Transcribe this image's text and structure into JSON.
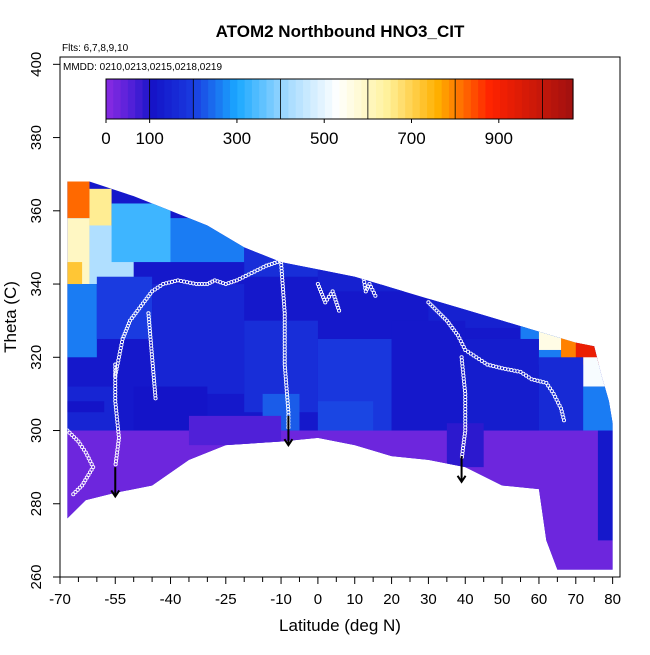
{
  "chart_data": {
    "type": "heatmap",
    "title": "ATOM2 Northbound HNO3_CIT",
    "flights_note": "Flts: 6,7,8,9,10",
    "dates_note": "MMDD: 0210,0213,0215,0218,0219",
    "xlabel": "Latitude (deg N)",
    "ylabel": "Theta (C)",
    "xlim": [
      -70,
      82
    ],
    "ylim": [
      260,
      402
    ],
    "x_ticks": [
      -70,
      -55,
      -40,
      -25,
      -10,
      0,
      10,
      20,
      30,
      40,
      50,
      60,
      70,
      80
    ],
    "x_minor_ticks": [
      -65,
      -60,
      -50,
      -45,
      -35,
      -30,
      -20,
      -15,
      -5,
      5,
      15,
      25,
      35,
      45,
      55,
      65,
      75
    ],
    "y_ticks": [
      260,
      280,
      300,
      320,
      340,
      360,
      380,
      400
    ],
    "colorbar": {
      "range": [
        0,
        1070
      ],
      "tick_values": [
        0,
        100,
        300,
        500,
        700,
        900
      ],
      "tick_labels": [
        "0",
        "100",
        "300",
        "500",
        "700",
        "900"
      ],
      "separators": [
        100,
        200,
        400,
        600,
        800,
        1000
      ],
      "stops": [
        {
          "v": 0,
          "c": "#8a2be2"
        },
        {
          "v": 60,
          "c": "#5020d8"
        },
        {
          "v": 110,
          "c": "#1414c8"
        },
        {
          "v": 200,
          "c": "#1a3be0"
        },
        {
          "v": 300,
          "c": "#1aa8ff"
        },
        {
          "v": 420,
          "c": "#a8dcff"
        },
        {
          "v": 530,
          "c": "#ffffff"
        },
        {
          "v": 640,
          "c": "#fff3a0"
        },
        {
          "v": 760,
          "c": "#ffb000"
        },
        {
          "v": 880,
          "c": "#ff2200"
        },
        {
          "v": 1070,
          "c": "#a01010"
        }
      ]
    },
    "domain": {
      "top": [
        [
          -68,
          368
        ],
        [
          -62,
          368
        ],
        [
          -50,
          364
        ],
        [
          -40,
          360
        ],
        [
          -30,
          356
        ],
        [
          -20,
          350
        ],
        [
          -10,
          346
        ],
        [
          0,
          344
        ],
        [
          10,
          342
        ],
        [
          20,
          339
        ],
        [
          30,
          336
        ],
        [
          40,
          333
        ],
        [
          50,
          330
        ],
        [
          60,
          327
        ],
        [
          70,
          324
        ],
        [
          75,
          323
        ],
        [
          77,
          315
        ],
        [
          79,
          308
        ],
        [
          80,
          302
        ]
      ],
      "bottom": [
        [
          -68,
          276
        ],
        [
          -63,
          281
        ],
        [
          -55,
          283
        ],
        [
          -45,
          285
        ],
        [
          -35,
          292
        ],
        [
          -25,
          296
        ],
        [
          -10,
          297
        ],
        [
          0,
          298
        ],
        [
          10,
          296
        ],
        [
          20,
          293
        ],
        [
          30,
          292
        ],
        [
          40,
          290
        ],
        [
          50,
          285
        ],
        [
          60,
          284
        ],
        [
          62,
          270
        ],
        [
          65,
          262
        ],
        [
          80,
          262
        ],
        [
          80,
          302
        ]
      ]
    },
    "field": [
      {
        "x": [
          -68,
          -62
        ],
        "y": [
          358,
          370
        ],
        "v": 820
      },
      {
        "x": [
          -62,
          -56
        ],
        "y": [
          355,
          366
        ],
        "v": 650
      },
      {
        "x": [
          -68,
          -62
        ],
        "y": [
          340,
          358
        ],
        "v": 600
      },
      {
        "x": [
          -68,
          -64
        ],
        "y": [
          336,
          346
        ],
        "v": 720
      },
      {
        "x": [
          -62,
          -50
        ],
        "y": [
          340,
          356
        ],
        "v": 430
      },
      {
        "x": [
          -56,
          -40
        ],
        "y": [
          346,
          362
        ],
        "v": 330
      },
      {
        "x": [
          -40,
          -20
        ],
        "y": [
          346,
          358
        ],
        "v": 260
      },
      {
        "x": [
          -20,
          0
        ],
        "y": [
          342,
          350
        ],
        "v": 170
      },
      {
        "x": [
          0,
          30
        ],
        "y": [
          338,
          344
        ],
        "v": 140
      },
      {
        "x": [
          30,
          60
        ],
        "y": [
          328,
          336
        ],
        "v": 140
      },
      {
        "x": [
          55,
          66
        ],
        "y": [
          318,
          332
        ],
        "v": 260
      },
      {
        "x": [
          60,
          70
        ],
        "y": [
          322,
          330
        ],
        "v": 560
      },
      {
        "x": [
          66,
          74
        ],
        "y": [
          318,
          326
        ],
        "v": 800
      },
      {
        "x": [
          70,
          80
        ],
        "y": [
          318,
          326
        ],
        "v": 920
      },
      {
        "x": [
          72,
          80
        ],
        "y": [
          312,
          320
        ],
        "v": 520
      },
      {
        "x": [
          -68,
          -60
        ],
        "y": [
          320,
          340
        ],
        "v": 260
      },
      {
        "x": [
          -60,
          -45
        ],
        "y": [
          325,
          342
        ],
        "v": 200
      },
      {
        "x": [
          -45,
          -20
        ],
        "y": [
          310,
          340
        ],
        "v": 150
      },
      {
        "x": [
          -50,
          -30
        ],
        "y": [
          300,
          312
        ],
        "v": 110
      },
      {
        "x": [
          -20,
          0
        ],
        "y": [
          305,
          330
        ],
        "v": 170
      },
      {
        "x": [
          0,
          20
        ],
        "y": [
          300,
          325
        ],
        "v": 190
      },
      {
        "x": [
          20,
          40
        ],
        "y": [
          300,
          330
        ],
        "v": 120
      },
      {
        "x": [
          40,
          60
        ],
        "y": [
          300,
          325
        ],
        "v": 130
      },
      {
        "x": [
          60,
          72
        ],
        "y": [
          300,
          320
        ],
        "v": 160
      },
      {
        "x": [
          72,
          80
        ],
        "y": [
          300,
          312
        ],
        "v": 260
      },
      {
        "x": [
          -15,
          -5
        ],
        "y": [
          300,
          310
        ],
        "v": 230
      },
      {
        "x": [
          0,
          15
        ],
        "y": [
          300,
          308
        ],
        "v": 210
      },
      {
        "x": [
          -68,
          -55
        ],
        "y": [
          300,
          312
        ],
        "v": 150
      },
      {
        "x": [
          -68,
          -58
        ],
        "y": [
          305,
          308
        ],
        "v": 110
      },
      {
        "x": [
          -68,
          80
        ],
        "y": [
          260,
          300
        ],
        "v": 30
      },
      {
        "x": [
          -35,
          -10
        ],
        "y": [
          296,
          304
        ],
        "v": 60
      },
      {
        "x": [
          35,
          45
        ],
        "y": [
          290,
          302
        ],
        "v": 90
      },
      {
        "x": [
          76,
          80
        ],
        "y": [
          270,
          300
        ],
        "v": 120
      }
    ],
    "sample_tracks": [
      [
        [
          -55,
          315
        ],
        [
          -53,
          325
        ],
        [
          -51,
          330
        ],
        [
          -48,
          334
        ],
        [
          -45,
          338
        ],
        [
          -42,
          340
        ],
        [
          -38,
          341
        ],
        [
          -33,
          340
        ],
        [
          -30,
          340
        ],
        [
          -28,
          341
        ],
        [
          -25,
          340
        ],
        [
          -22,
          341
        ],
        [
          -18,
          343
        ],
        [
          -14,
          345
        ],
        [
          -11,
          346
        ],
        [
          -9,
          347
        ]
      ],
      [
        [
          -55,
          318
        ],
        [
          -55,
          308
        ],
        [
          -54,
          298
        ],
        [
          -55,
          290
        ]
      ],
      [
        [
          -46,
          332
        ],
        [
          -45,
          320
        ],
        [
          -44,
          308
        ]
      ],
      [
        [
          -10,
          346
        ],
        [
          -9,
          332
        ],
        [
          -9,
          318
        ],
        [
          -8,
          305
        ],
        [
          -8,
          300
        ]
      ],
      [
        [
          0,
          340
        ],
        [
          2,
          335
        ],
        [
          4,
          338
        ],
        [
          6,
          332
        ]
      ],
      [
        [
          12,
          344
        ],
        [
          13,
          338
        ],
        [
          14,
          340
        ],
        [
          16,
          336
        ]
      ],
      [
        [
          22,
          344
        ],
        [
          24,
          340
        ],
        [
          26,
          344
        ],
        [
          28,
          343
        ]
      ],
      [
        [
          30,
          335
        ],
        [
          35,
          330
        ],
        [
          38,
          326
        ],
        [
          40,
          322
        ],
        [
          43,
          320
        ],
        [
          46,
          318
        ],
        [
          50,
          317
        ],
        [
          55,
          316
        ],
        [
          58,
          314
        ],
        [
          62,
          313
        ]
      ],
      [
        [
          39,
          320
        ],
        [
          40,
          310
        ],
        [
          40,
          300
        ],
        [
          39,
          292
        ]
      ],
      [
        [
          62,
          313
        ],
        [
          64,
          310
        ],
        [
          66,
          306
        ],
        [
          67,
          302
        ]
      ],
      [
        [
          -68,
          300
        ],
        [
          -65,
          297
        ],
        [
          -63,
          294
        ],
        [
          -61,
          290
        ],
        [
          -64,
          285
        ],
        [
          -67,
          282
        ]
      ]
    ],
    "down_arrows": [
      {
        "x": -55,
        "y_from": 290,
        "y_to": 282
      },
      {
        "x": -8,
        "y_from": 304,
        "y_to": 296
      },
      {
        "x": 39,
        "y_from": 293,
        "y_to": 286
      }
    ]
  }
}
